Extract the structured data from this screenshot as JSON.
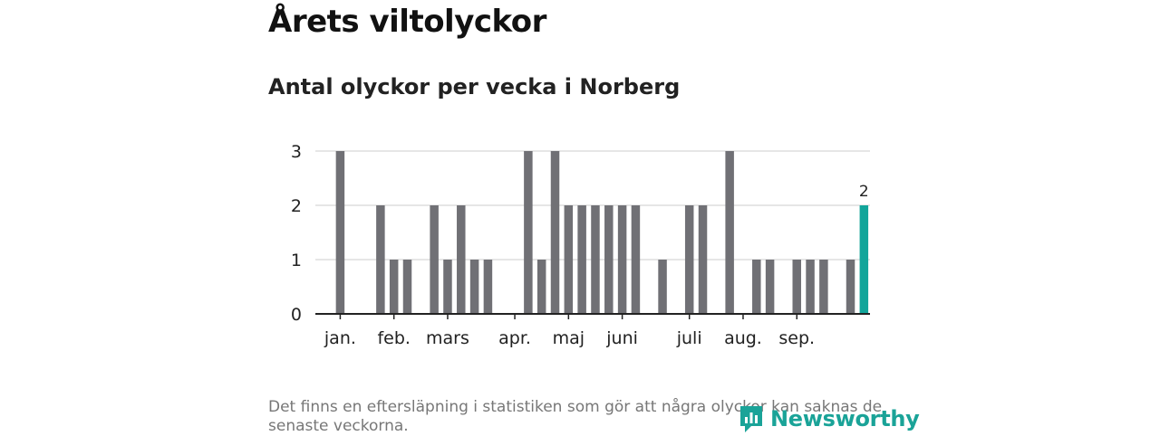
{
  "header": {
    "title": "Årets viltolyckor",
    "subtitle": "Antal olyckor per vecka i Norberg"
  },
  "footnote": "Det finns en eftersläpning i statistiken som gör att några olyckor kan saknas de senaste veckorna.",
  "brand": {
    "name": "Newsworthy"
  },
  "colors": {
    "bar": "#707075",
    "highlight": "#12a59a",
    "grid": "#dddddd",
    "axis": "#222222"
  },
  "chart_data": {
    "type": "bar",
    "title": "Antal olyckor per vecka i Norberg",
    "xlabel": "",
    "ylabel": "",
    "ylim": [
      0,
      3
    ],
    "yticks": [
      "0",
      "1",
      "2",
      "3"
    ],
    "weeks": [
      1,
      2,
      3,
      4,
      5,
      6,
      7,
      8,
      9,
      10,
      11,
      12,
      13,
      14,
      15,
      16,
      17,
      18,
      19,
      20,
      21,
      22,
      23,
      24,
      25,
      26,
      27,
      28,
      29,
      30,
      31,
      32,
      33,
      34,
      35,
      36,
      37,
      38,
      39,
      40,
      41
    ],
    "values": [
      0,
      3,
      0,
      0,
      2,
      1,
      1,
      0,
      2,
      1,
      2,
      1,
      1,
      0,
      0,
      3,
      1,
      3,
      2,
      2,
      2,
      2,
      2,
      2,
      0,
      1,
      0,
      2,
      2,
      0,
      3,
      0,
      1,
      1,
      0,
      1,
      1,
      1,
      0,
      1,
      2
    ],
    "highlight_index": 40,
    "highlight_label": "2",
    "month_labels": [
      {
        "label": "jan.",
        "week": 2
      },
      {
        "label": "feb.",
        "week": 6
      },
      {
        "label": "mars",
        "week": 10
      },
      {
        "label": "apr.",
        "week": 15
      },
      {
        "label": "maj",
        "week": 19
      },
      {
        "label": "juni",
        "week": 23
      },
      {
        "label": "juli",
        "week": 28
      },
      {
        "label": "aug.",
        "week": 32
      },
      {
        "label": "sep.",
        "week": 36
      }
    ]
  }
}
